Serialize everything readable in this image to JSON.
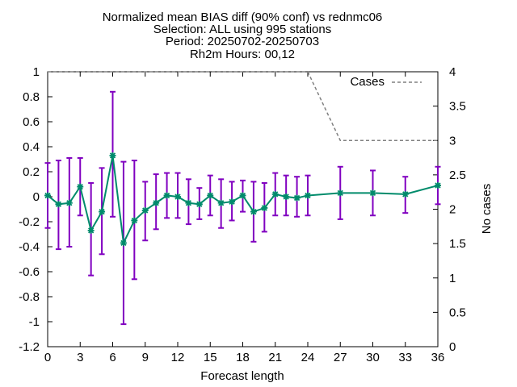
{
  "chart_data": {
    "type": "line",
    "title_lines": [
      "Normalized mean BIAS diff (90% conf) vs rednmc06",
      "Selection: ALL using   995 stations",
      "Period: 20250702-20250703",
      "Rh2m   Hours: 00,12"
    ],
    "xlabel": "Forecast length",
    "ylabel": "",
    "y2label": "No cases",
    "xlim": [
      0,
      36
    ],
    "ylim": [
      -1.2,
      1
    ],
    "y2lim": [
      0,
      4
    ],
    "x_ticks": [
      "0",
      "3",
      "6",
      "9",
      "12",
      "15",
      "18",
      "21",
      "24",
      "27",
      "30",
      "33",
      "36"
    ],
    "y_ticks": [
      "1",
      "0.8",
      "0.6",
      "0.4",
      "0.2",
      "0",
      "-0.2",
      "-0.4",
      "-0.6",
      "-0.8",
      "-1",
      "-1.2"
    ],
    "y2_ticks": [
      "4",
      "3.5",
      "3",
      "2.5",
      "2",
      "1.5",
      "1",
      "0.5",
      "0"
    ],
    "grid": false,
    "legend_position": "top-right",
    "series": [
      {
        "kind": "bias",
        "color": "#008b6b",
        "errorbar_color": "#8000c0",
        "x": [
          0,
          1,
          2,
          3,
          4,
          5,
          6,
          7,
          8,
          9,
          10,
          11,
          12,
          13,
          14,
          15,
          16,
          17,
          18,
          19,
          20,
          21,
          22,
          23,
          24,
          27,
          30,
          33,
          36
        ],
        "values": [
          0.01,
          -0.06,
          -0.05,
          0.08,
          -0.27,
          -0.12,
          0.33,
          -0.37,
          -0.19,
          -0.11,
          -0.05,
          0.01,
          0.0,
          -0.05,
          -0.06,
          0.01,
          -0.05,
          -0.04,
          0.01,
          -0.12,
          -0.09,
          0.02,
          0.0,
          -0.01,
          0.01,
          0.03,
          0.03,
          0.02,
          0.09
        ],
        "lower": [
          -0.25,
          -0.42,
          -0.4,
          -0.15,
          -0.63,
          -0.46,
          -0.16,
          -1.02,
          -0.66,
          -0.35,
          -0.26,
          -0.17,
          -0.17,
          -0.22,
          -0.18,
          -0.15,
          -0.25,
          -0.19,
          -0.12,
          -0.36,
          -0.28,
          -0.15,
          -0.15,
          -0.16,
          -0.15,
          -0.18,
          -0.15,
          -0.13,
          -0.06
        ],
        "upper": [
          0.27,
          0.29,
          0.31,
          0.31,
          0.11,
          0.23,
          0.84,
          0.28,
          0.29,
          0.12,
          0.18,
          0.19,
          0.19,
          0.14,
          0.07,
          0.17,
          0.14,
          0.12,
          0.13,
          0.12,
          0.11,
          0.19,
          0.17,
          0.16,
          0.17,
          0.24,
          0.21,
          0.16,
          0.24
        ]
      },
      {
        "kind": "cases",
        "name": "Cases",
        "axis": "y2",
        "color": "#808080",
        "dashed": true,
        "x": [
          0,
          24,
          27,
          36
        ],
        "values": [
          4,
          4,
          3,
          3
        ]
      }
    ]
  }
}
